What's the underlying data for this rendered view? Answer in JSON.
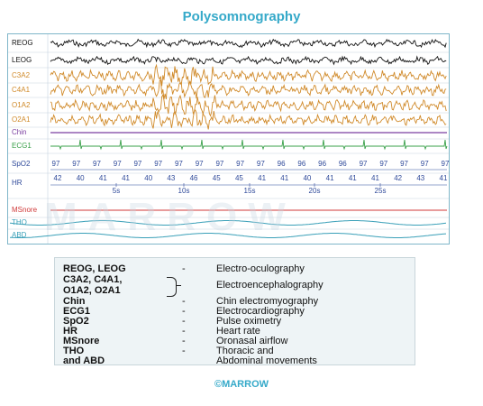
{
  "title": "Polysomnography",
  "watermark": "MARROW",
  "footer": "©MARROW",
  "colors": {
    "title": "#35a9c9",
    "eog": "#111111",
    "eeg": "#d08a2a",
    "chin": "#7b3fa0",
    "ecg": "#3aa04a",
    "spo2": "#2f4a9a",
    "hr": "#2f4a9a",
    "msnore": "#d03a3a",
    "resp": "#3aa0b8"
  },
  "channels": [
    {
      "key": "reog",
      "label": "REOG"
    },
    {
      "key": "leog",
      "label": "LEOG"
    },
    {
      "key": "c3a2",
      "label": "C3A2"
    },
    {
      "key": "c4a1",
      "label": "C4A1"
    },
    {
      "key": "o1a2",
      "label": "O1A2"
    },
    {
      "key": "o2a1",
      "label": "O2A1"
    },
    {
      "key": "chin",
      "label": "Chin"
    },
    {
      "key": "ecg1",
      "label": "ECG1"
    },
    {
      "key": "spo2",
      "label": "SpO2"
    },
    {
      "key": "hr",
      "label": "HR"
    },
    {
      "key": "msnore",
      "label": "MSnore"
    },
    {
      "key": "tho",
      "label": "THO"
    },
    {
      "key": "abd",
      "label": "ABD"
    }
  ],
  "spo2_values": [
    "97",
    "97",
    "97",
    "97",
    "97",
    "97",
    "97",
    "97",
    "97",
    "97",
    "97",
    "96",
    "96",
    "96",
    "96",
    "97",
    "97",
    "97",
    "97",
    "97"
  ],
  "hr_values": [
    "42",
    "40",
    "41",
    "41",
    "40",
    "43",
    "46",
    "45",
    "45",
    "41",
    "41",
    "40",
    "41",
    "41",
    "41",
    "42",
    "43",
    "41"
  ],
  "time_ticks": [
    "5s",
    "10s",
    "15s",
    "20s",
    "25s"
  ],
  "legend": [
    {
      "abbr": "REOG, LEOG",
      "dash": "-",
      "desc": "Electro-oculography"
    },
    {
      "abbr": "C3A2, C4A1,",
      "dash": "",
      "desc": ""
    },
    {
      "abbr": "O1A2, O2A1",
      "dash": "",
      "desc": "Electroencephalography"
    },
    {
      "abbr": "Chin",
      "dash": "-",
      "desc": "Chin electromyography"
    },
    {
      "abbr": "ECG1",
      "dash": "-",
      "desc": "Electrocardiography"
    },
    {
      "abbr": "SpO2",
      "dash": "-",
      "desc": "Pulse oximetry"
    },
    {
      "abbr": "HR",
      "dash": "-",
      "desc": "Heart rate"
    },
    {
      "abbr": "MSnore",
      "dash": "-",
      "desc": "Oronasal airflow"
    },
    {
      "abbr": "THO",
      "dash": "-",
      "desc": "Thoracic and"
    },
    {
      "abbr": "and ABD",
      "dash": "",
      "desc": "Abdominal movements"
    }
  ]
}
